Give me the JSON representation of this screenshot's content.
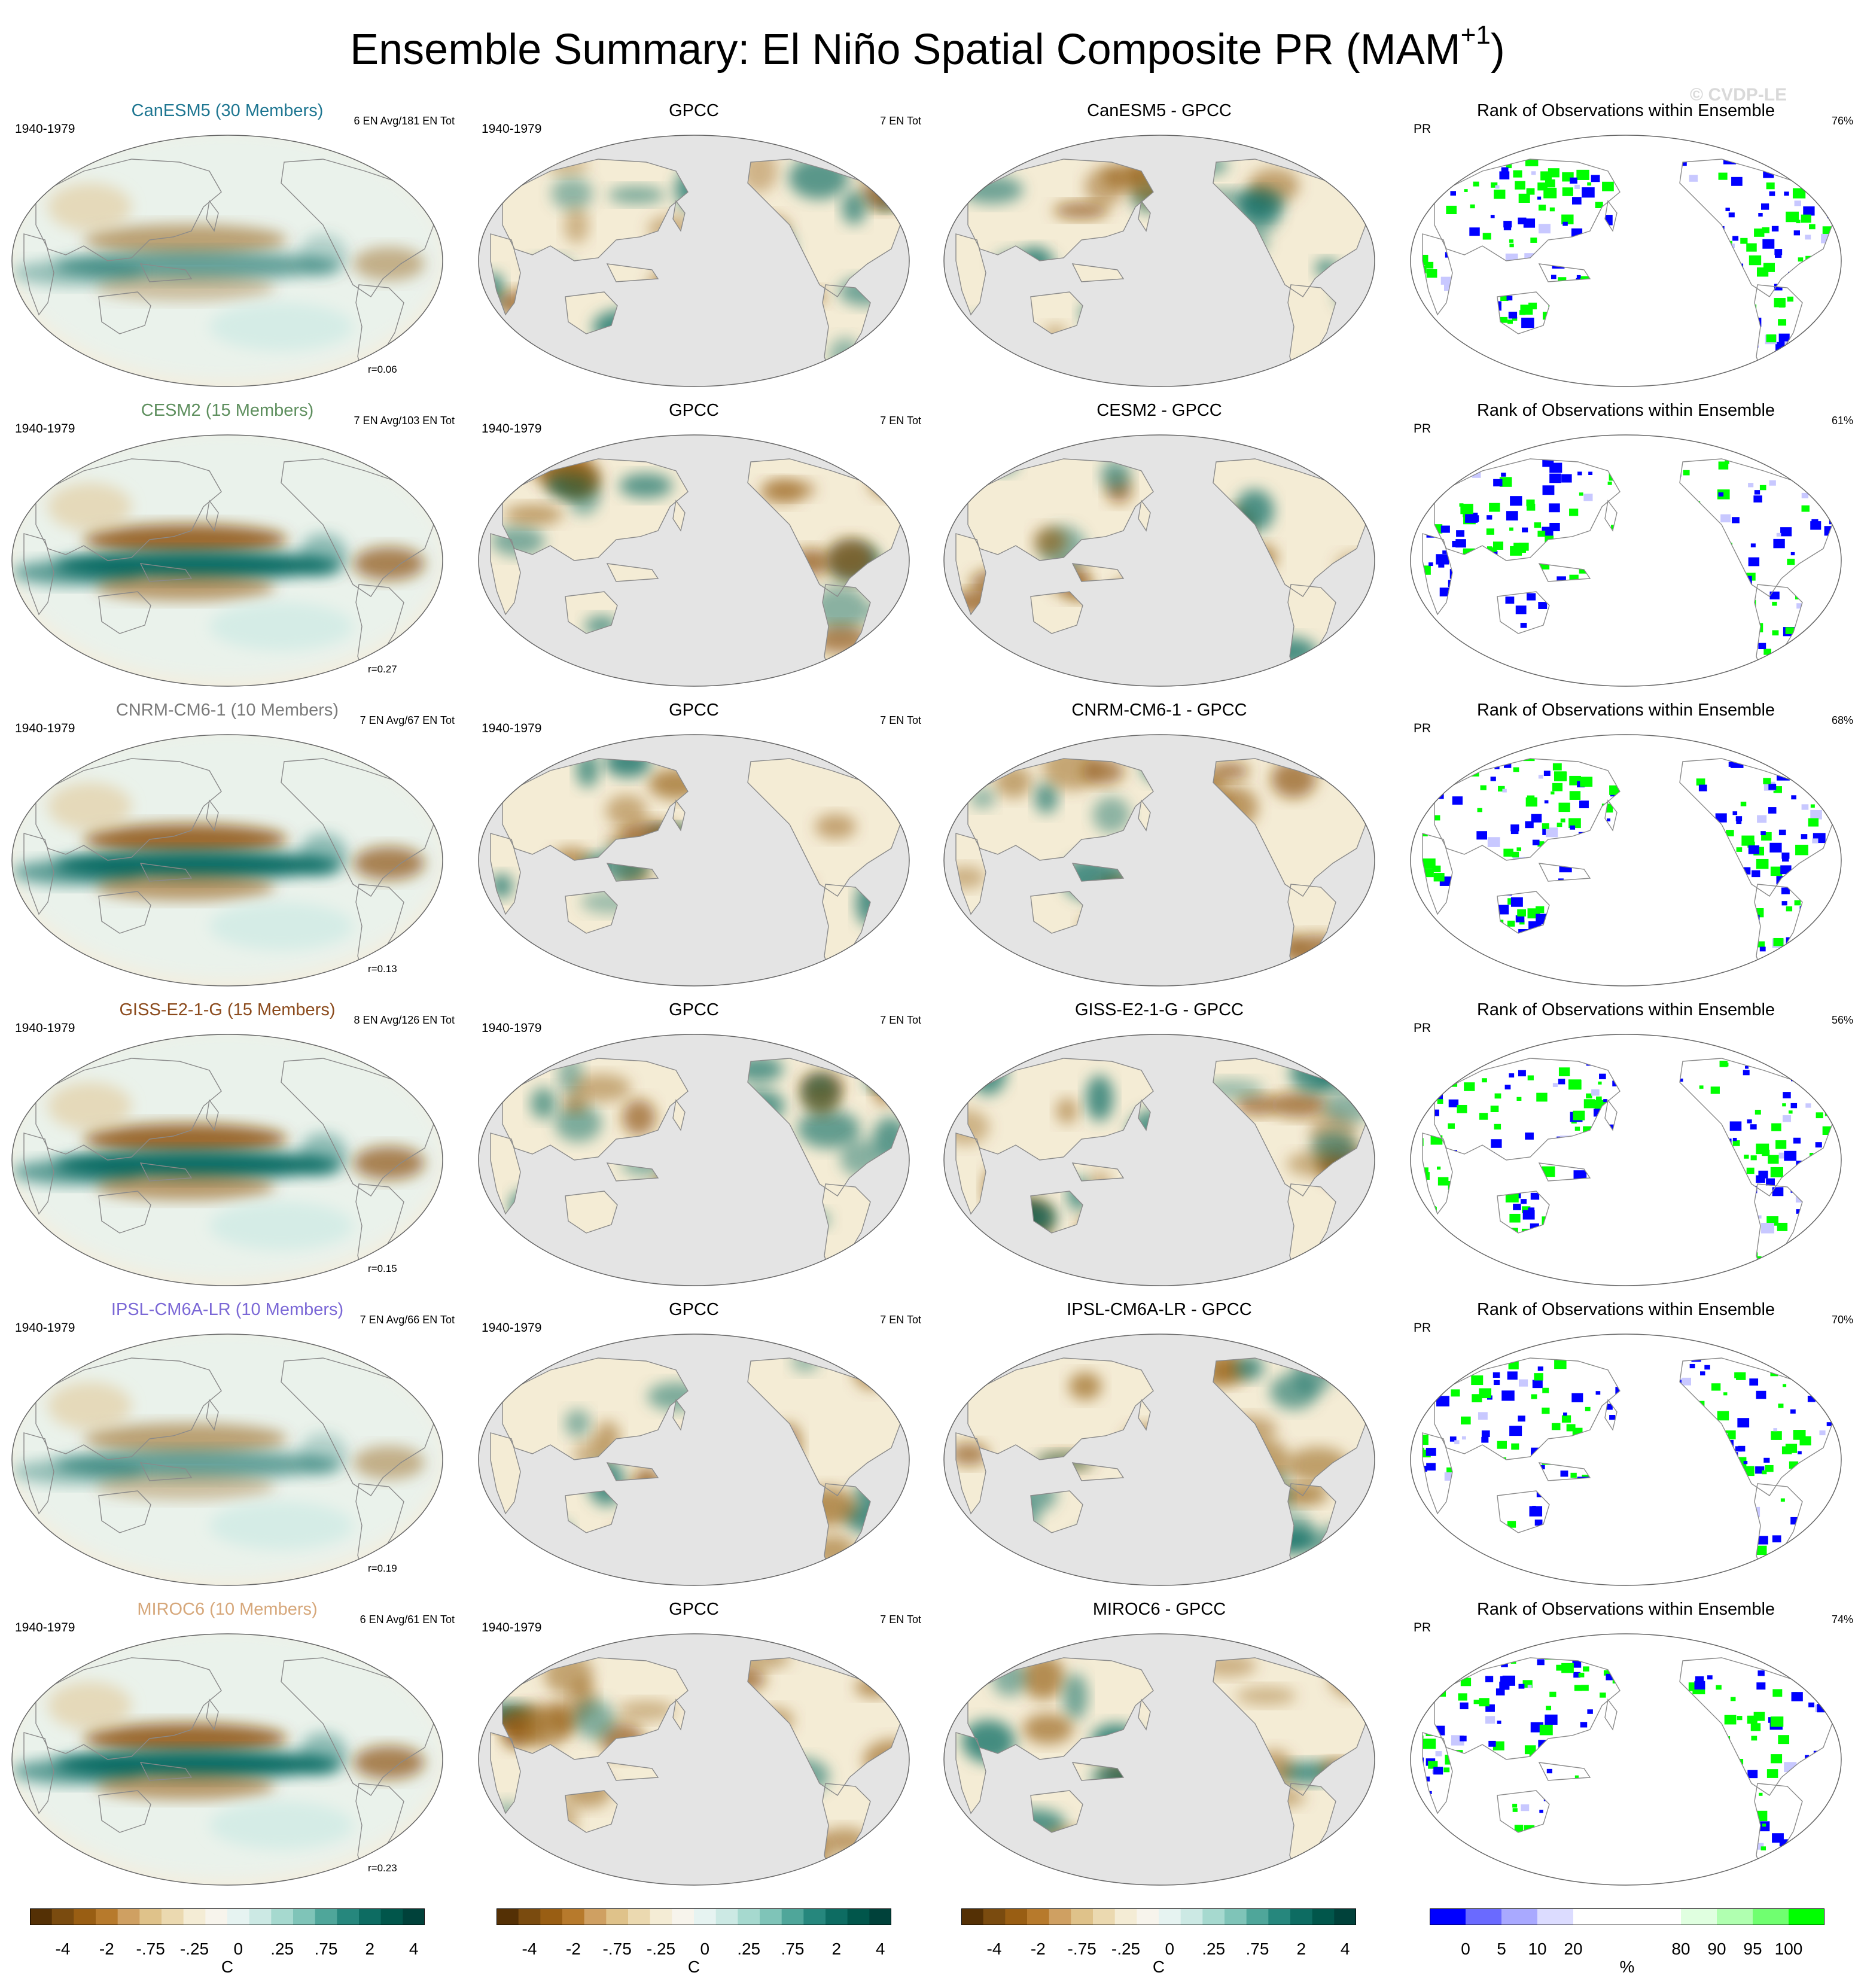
{
  "title": {
    "main": "Ensemble Summary: El Niño Spatial Composite PR (MAM",
    "sup": "+1",
    "end": ")"
  },
  "watermark": "© CVDP-LE",
  "rows": [
    {
      "model": {
        "title": "CanESM5 (30 Members)",
        "title_color": "#1e7691",
        "left": "1940-1979",
        "right": "6 EN Avg/181 EN Tot",
        "bottom": "r=0.06"
      },
      "obs": {
        "title": "GPCC",
        "left": "1940-1979",
        "right": "7 EN Tot"
      },
      "diff": {
        "title": "CanESM5 - GPCC"
      },
      "rank": {
        "title": "Rank of Observations within Ensemble",
        "left": "PR",
        "right": "76%"
      }
    },
    {
      "model": {
        "title": "CESM2 (15 Members)",
        "title_color": "#5e8f5e",
        "left": "1940-1979",
        "right": "7 EN Avg/103 EN Tot",
        "bottom": "r=0.27"
      },
      "obs": {
        "title": "GPCC",
        "left": "1940-1979",
        "right": "7 EN Tot"
      },
      "diff": {
        "title": "CESM2 - GPCC"
      },
      "rank": {
        "title": "Rank of Observations within Ensemble",
        "left": "PR",
        "right": "61%"
      }
    },
    {
      "model": {
        "title": "CNRM-CM6-1 (10 Members)",
        "title_color": "#7a7a7a",
        "left": "1940-1979",
        "right": "7 EN Avg/67 EN Tot",
        "bottom": "r=0.13"
      },
      "obs": {
        "title": "GPCC",
        "left": "1940-1979",
        "right": "7 EN Tot"
      },
      "diff": {
        "title": "CNRM-CM6-1 - GPCC"
      },
      "rank": {
        "title": "Rank of Observations within Ensemble",
        "left": "PR",
        "right": "68%"
      }
    },
    {
      "model": {
        "title": "GISS-E2-1-G (15 Members)",
        "title_color": "#8b4a1c",
        "left": "1940-1979",
        "right": "8 EN Avg/126 EN Tot",
        "bottom": "r=0.15"
      },
      "obs": {
        "title": "GPCC",
        "left": "1940-1979",
        "right": "7 EN Tot"
      },
      "diff": {
        "title": "GISS-E2-1-G - GPCC"
      },
      "rank": {
        "title": "Rank of Observations within Ensemble",
        "left": "PR",
        "right": "56%"
      }
    },
    {
      "model": {
        "title": "IPSL-CM6A-LR (10 Members)",
        "title_color": "#7b68d6",
        "left": "1940-1979",
        "right": "7 EN Avg/66 EN Tot",
        "bottom": "r=0.19"
      },
      "obs": {
        "title": "GPCC",
        "left": "1940-1979",
        "right": "7 EN Tot"
      },
      "diff": {
        "title": "IPSL-CM6A-LR - GPCC"
      },
      "rank": {
        "title": "Rank of Observations within Ensemble",
        "left": "PR",
        "right": "70%"
      }
    },
    {
      "model": {
        "title": "MIROC6 (10 Members)",
        "title_color": "#d6a77a",
        "left": "1940-1979",
        "right": "6 EN Avg/61 EN Tot",
        "bottom": "r=0.23"
      },
      "obs": {
        "title": "GPCC",
        "left": "1940-1979",
        "right": "7 EN Tot"
      },
      "diff": {
        "title": "MIROC6 - GPCC"
      },
      "rank": {
        "title": "Rank of Observations within Ensemble",
        "left": "PR",
        "right": "74%"
      }
    }
  ],
  "colorbars": {
    "pr": {
      "colors": [
        "#543005",
        "#7a4b0f",
        "#995e13",
        "#b77a2c",
        "#cfa062",
        "#dfc28a",
        "#ebd9b0",
        "#f4ecd5",
        "#f7f4ec",
        "#e6f3f1",
        "#cce9e4",
        "#a6d9cf",
        "#7fc4b8",
        "#4fa69a",
        "#26877d",
        "#0d6c62",
        "#01564b",
        "#00413a"
      ],
      "labels": [
        "-4",
        "-2",
        "-.75",
        "-.25",
        "0",
        ".25",
        ".75",
        "2",
        "4"
      ],
      "unit": "C"
    },
    "rank": {
      "colors": [
        "#0000ff",
        "#6a6aff",
        "#a9a9ff",
        "#dcdcff",
        "#ffffff",
        "#ffffff",
        "#ffffff",
        "#e0ffe0",
        "#b0ffb0",
        "#70ff70",
        "#00ff00"
      ],
      "labels": [
        "0",
        "5",
        "10",
        "20",
        "80",
        "90",
        "95",
        "100"
      ],
      "unit": "%"
    }
  },
  "colors": {
    "ocean_gray": "#e4e4e4",
    "rank_high": "#00ff00",
    "rank_low": "#0000ff",
    "wet": "#01665e",
    "dry": "#8c510a"
  }
}
